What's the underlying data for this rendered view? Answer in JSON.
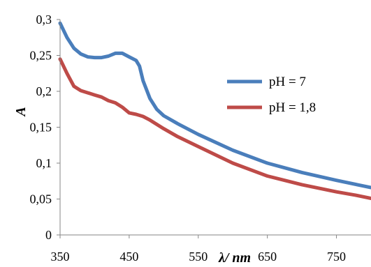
{
  "chart_data": {
    "type": "line",
    "xlabel": "λ/ nm",
    "ylabel": "A",
    "xlim": [
      350,
      800
    ],
    "ylim": [
      0,
      0.3
    ],
    "xticks": [
      "350",
      "450",
      "550",
      "650",
      "750"
    ],
    "yticks": [
      "0",
      "0,05",
      "0,1",
      "0,15",
      "0,2",
      "0,25",
      "0,3"
    ],
    "grid": false,
    "legend_position": "right",
    "series": [
      {
        "name": "pH = 7",
        "color": "#4a7ebb",
        "x": [
          350,
          360,
          370,
          380,
          390,
          400,
          410,
          420,
          430,
          440,
          450,
          460,
          465,
          470,
          480,
          490,
          500,
          520,
          550,
          600,
          650,
          700,
          750,
          780,
          800
        ],
        "y": [
          0.295,
          0.275,
          0.26,
          0.252,
          0.248,
          0.247,
          0.247,
          0.249,
          0.253,
          0.253,
          0.248,
          0.243,
          0.235,
          0.215,
          0.19,
          0.175,
          0.166,
          0.155,
          0.14,
          0.118,
          0.1,
          0.087,
          0.076,
          0.07,
          0.066
        ]
      },
      {
        "name": "pH = 1,8",
        "color": "#be4b48",
        "x": [
          350,
          360,
          370,
          380,
          390,
          400,
          410,
          420,
          430,
          440,
          450,
          460,
          470,
          480,
          500,
          520,
          550,
          600,
          650,
          700,
          750,
          780,
          800
        ],
        "y": [
          0.245,
          0.225,
          0.207,
          0.201,
          0.198,
          0.195,
          0.192,
          0.187,
          0.184,
          0.178,
          0.17,
          0.168,
          0.165,
          0.16,
          0.148,
          0.137,
          0.123,
          0.1,
          0.082,
          0.07,
          0.06,
          0.055,
          0.051
        ]
      }
    ]
  }
}
